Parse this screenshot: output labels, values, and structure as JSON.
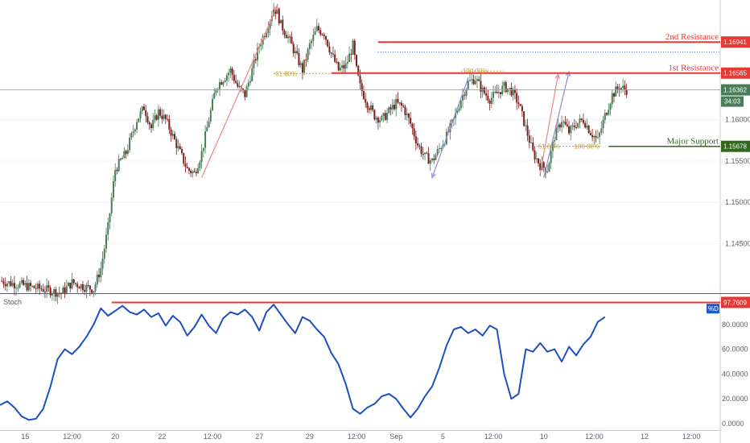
{
  "colors": {
    "resistance": "#e53935",
    "support": "#33691e",
    "price_tag": "#4a7c59",
    "stoch_line": "#1b4fc4",
    "bull_candle": "#4a7c59",
    "bear_candle": "#7a1f1f",
    "fib": "#c9a227",
    "arrow_up": "#f28b8b",
    "arrow_down": "#9c8fd6",
    "d_badge": "#1e5bd8"
  },
  "chart_data": [
    {
      "type": "candlestick",
      "ylim": [
        1.139,
        1.1745
      ],
      "y_ticks": [
        "1.16000",
        "1.15500",
        "1.15000",
        "1.14500"
      ],
      "x_ticks": [
        "15",
        "12:00",
        "20",
        "22",
        "12:00",
        "27",
        "29",
        "12:00",
        "Sep",
        "5",
        "12:00",
        "10",
        "12:00",
        "12",
        "12:00",
        "17"
      ],
      "close_path": [
        [
          0,
          1.1405
        ],
        [
          3,
          1.1402
        ],
        [
          6,
          1.14
        ],
        [
          9,
          1.1397
        ],
        [
          12,
          1.1395
        ],
        [
          15,
          1.1392
        ],
        [
          17,
          1.139
        ],
        [
          20,
          1.1403
        ],
        [
          22,
          1.14
        ],
        [
          24,
          1.1397
        ],
        [
          26,
          1.1395
        ],
        [
          28,
          1.142
        ],
        [
          30,
          1.147
        ],
        [
          32,
          1.154
        ],
        [
          35,
          1.156
        ],
        [
          38,
          1.16
        ],
        [
          40,
          1.1615
        ],
        [
          42,
          1.159
        ],
        [
          44,
          1.161
        ],
        [
          46,
          1.16
        ],
        [
          48,
          1.158
        ],
        [
          50,
          1.156
        ],
        [
          52,
          1.154
        ],
        [
          54,
          1.1535
        ],
        [
          56,
          1.156
        ],
        [
          58,
          1.16
        ],
        [
          60,
          1.164
        ],
        [
          62,
          1.165
        ],
        [
          64,
          1.166
        ],
        [
          66,
          1.164
        ],
        [
          68,
          1.163
        ],
        [
          70,
          1.166
        ],
        [
          72,
          1.169
        ],
        [
          74,
          1.171
        ],
        [
          76,
          1.1735
        ],
        [
          77,
          1.173
        ],
        [
          78,
          1.1715
        ],
        [
          80,
          1.17
        ],
        [
          82,
          1.168
        ],
        [
          84,
          1.166
        ],
        [
          86,
          1.169
        ],
        [
          88,
          1.171
        ],
        [
          90,
          1.1705
        ],
        [
          92,
          1.168
        ],
        [
          94,
          1.166
        ],
        [
          96,
          1.1665
        ],
        [
          98,
          1.169
        ],
        [
          99,
          1.166
        ],
        [
          100,
          1.164
        ],
        [
          102,
          1.162
        ],
        [
          104,
          1.1605
        ],
        [
          106,
          1.16
        ],
        [
          108,
          1.161
        ],
        [
          110,
          1.162
        ],
        [
          112,
          1.1615
        ],
        [
          114,
          1.1595
        ],
        [
          116,
          1.157
        ],
        [
          118,
          1.1555
        ],
        [
          120,
          1.155
        ],
        [
          122,
          1.1565
        ],
        [
          124,
          1.158
        ],
        [
          126,
          1.16
        ],
        [
          128,
          1.1625
        ],
        [
          130,
          1.1645
        ],
        [
          132,
          1.165
        ],
        [
          134,
          1.1635
        ],
        [
          136,
          1.1625
        ],
        [
          138,
          1.1632
        ],
        [
          140,
          1.164
        ],
        [
          142,
          1.1635
        ],
        [
          144,
          1.162
        ],
        [
          146,
          1.159
        ],
        [
          148,
          1.156
        ],
        [
          150,
          1.1545
        ],
        [
          152,
          1.154
        ],
        [
          154,
          1.158
        ],
        [
          156,
          1.16
        ],
        [
          158,
          1.1585
        ],
        [
          160,
          1.1595
        ],
        [
          162,
          1.16
        ],
        [
          164,
          1.1585
        ],
        [
          166,
          1.1575
        ],
        [
          168,
          1.1605
        ],
        [
          170,
          1.163
        ],
        [
          172,
          1.164
        ],
        [
          174,
          1.1636
        ]
      ],
      "levels": [
        {
          "name": "2nd Resistance",
          "value_label": "1.16941",
          "value": 1.16941
        },
        {
          "name": "1st Resistance",
          "value_label": "1.16565",
          "value": 1.16565
        },
        {
          "name": "Major Support",
          "value_label": "1.15678",
          "value": 1.15678
        }
      ],
      "current_price_label": "1.16362",
      "countdown_label": "34:03",
      "fib_labels": [
        "61.80%",
        "100.00%",
        "61.80%",
        "100.00%"
      ]
    },
    {
      "type": "line",
      "title": "Stoch",
      "ylim": [
        0,
        100
      ],
      "y_ticks": [
        "80.0000",
        "60.0000",
        "40.0000",
        "20.0000",
        "0.0000"
      ],
      "level": {
        "value": 97.7609,
        "value_label": "97.7609"
      },
      "series": [
        {
          "name": "%D",
          "points": [
            [
              0,
              15
            ],
            [
              2,
              18
            ],
            [
              4,
              13
            ],
            [
              6,
              6
            ],
            [
              8,
              3
            ],
            [
              10,
              4
            ],
            [
              12,
              12
            ],
            [
              14,
              30
            ],
            [
              16,
              52
            ],
            [
              18,
              60
            ],
            [
              20,
              56
            ],
            [
              22,
              62
            ],
            [
              24,
              70
            ],
            [
              26,
              80
            ],
            [
              28,
              93
            ],
            [
              30,
              87
            ],
            [
              32,
              91
            ],
            [
              34,
              95
            ],
            [
              36,
              90
            ],
            [
              38,
              88
            ],
            [
              40,
              92
            ],
            [
              42,
              86
            ],
            [
              44,
              89
            ],
            [
              46,
              79
            ],
            [
              48,
              87
            ],
            [
              50,
              82
            ],
            [
              52,
              71
            ],
            [
              54,
              78
            ],
            [
              56,
              88
            ],
            [
              58,
              79
            ],
            [
              60,
              73
            ],
            [
              62,
              85
            ],
            [
              64,
              90
            ],
            [
              66,
              88
            ],
            [
              68,
              92
            ],
            [
              70,
              86
            ],
            [
              72,
              75
            ],
            [
              74,
              90
            ],
            [
              76,
              96
            ],
            [
              78,
              88
            ],
            [
              80,
              80
            ],
            [
              82,
              73
            ],
            [
              84,
              86
            ],
            [
              86,
              83
            ],
            [
              88,
              76
            ],
            [
              90,
              70
            ],
            [
              92,
              57
            ],
            [
              94,
              48
            ],
            [
              96,
              32
            ],
            [
              98,
              12
            ],
            [
              100,
              8
            ],
            [
              102,
              13
            ],
            [
              104,
              16
            ],
            [
              106,
              22
            ],
            [
              108,
              24
            ],
            [
              110,
              20
            ],
            [
              112,
              12
            ],
            [
              114,
              5
            ],
            [
              116,
              12
            ],
            [
              118,
              22
            ],
            [
              120,
              30
            ],
            [
              122,
              45
            ],
            [
              124,
              63
            ],
            [
              126,
              76
            ],
            [
              128,
              78
            ],
            [
              130,
              73
            ],
            [
              132,
              76
            ],
            [
              134,
              71
            ],
            [
              136,
              79
            ],
            [
              138,
              76
            ],
            [
              140,
              40
            ],
            [
              142,
              20
            ],
            [
              144,
              24
            ],
            [
              146,
              60
            ],
            [
              148,
              58
            ],
            [
              150,
              65
            ],
            [
              152,
              58
            ],
            [
              154,
              60
            ],
            [
              156,
              50
            ],
            [
              158,
              62
            ],
            [
              160,
              55
            ],
            [
              162,
              64
            ],
            [
              164,
              70
            ],
            [
              166,
              82
            ],
            [
              168,
              86
            ]
          ]
        }
      ]
    }
  ]
}
